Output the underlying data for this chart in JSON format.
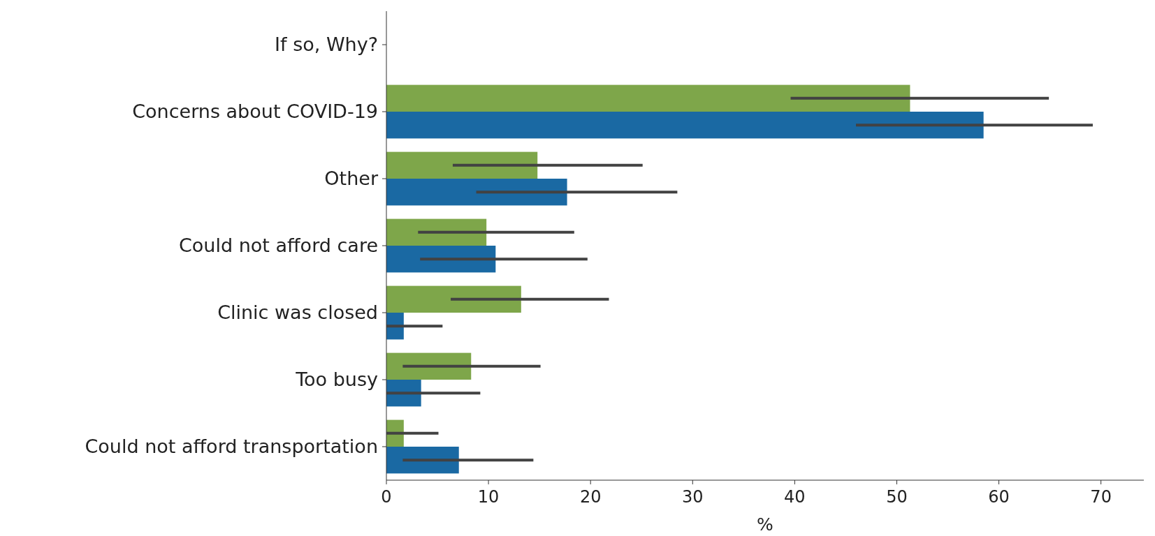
{
  "chart_data": {
    "type": "bar",
    "orientation": "horizontal",
    "xlabel": "%",
    "categories": [
      "If so, Why?",
      "Concerns about COVID-19",
      "Other",
      "Could not afford care",
      "Clinic was closed",
      "Too busy",
      "Could not afford transportation"
    ],
    "series": [
      {
        "color": "#7ea64a",
        "values": [
          null,
          51.3,
          14.8,
          9.8,
          13.2,
          8.3,
          1.7
        ],
        "errors": [
          null,
          [
            39.6,
            64.9
          ],
          [
            6.5,
            25.1
          ],
          [
            3.1,
            18.4
          ],
          [
            6.3,
            21.8
          ],
          [
            1.6,
            15.1
          ],
          [
            0,
            5.1
          ]
        ]
      },
      {
        "color": "#1a69a3",
        "values": [
          null,
          58.5,
          17.7,
          10.7,
          1.7,
          3.4,
          7.1
        ],
        "errors": [
          null,
          [
            46.0,
            69.2
          ],
          [
            8.8,
            28.5
          ],
          [
            3.3,
            19.7
          ],
          [
            0,
            5.5
          ],
          [
            0,
            9.2
          ],
          [
            1.6,
            14.4
          ]
        ]
      }
    ],
    "xlim": [
      0,
      74.2
    ],
    "xticks": [
      0,
      10,
      20,
      30,
      40,
      50,
      60,
      70
    ]
  }
}
